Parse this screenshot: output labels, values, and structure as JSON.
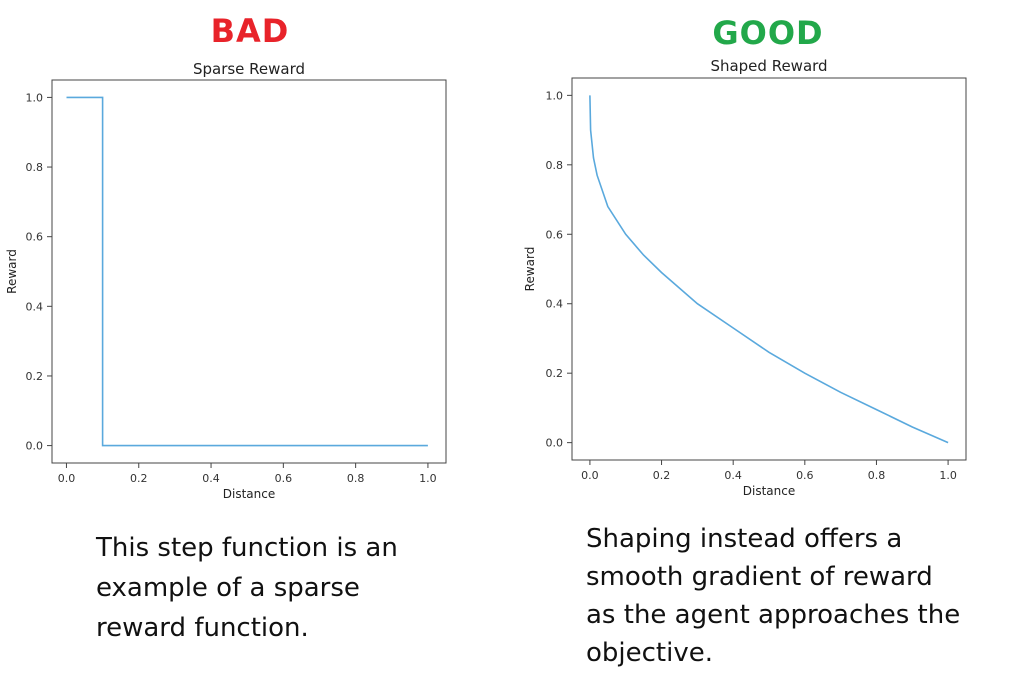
{
  "panels": [
    {
      "verdict": "BAD",
      "verdict_color": "#e8232a",
      "caption": "This step function is an\nexample of a sparse\nreward function."
    },
    {
      "verdict": "GOOD",
      "verdict_color": "#22a84a",
      "caption": "Shaping instead offers a\nsmooth gradient of reward\nas the agent approaches the\nobjective."
    }
  ],
  "chart_data": [
    {
      "type": "line",
      "title": "Sparse Reward",
      "xlabel": "Distance",
      "ylabel": "Reward",
      "xlim": [
        -0.04,
        1.05
      ],
      "ylim": [
        -0.05,
        1.05
      ],
      "xticks": [
        0.0,
        0.2,
        0.4,
        0.6,
        0.8,
        1.0
      ],
      "xtick_labels": [
        "0.0",
        "0.2",
        "0.4",
        "0.6",
        "0.8",
        "1.0"
      ],
      "yticks": [
        0.0,
        0.2,
        0.4,
        0.6,
        0.8,
        1.0
      ],
      "ytick_labels": [
        "0.0",
        "0.2",
        "0.4",
        "0.6",
        "0.8",
        "1.0"
      ],
      "line_color": "#5aa9dd",
      "series": [
        {
          "x": [
            0.0,
            0.1,
            0.1,
            1.0
          ],
          "y": [
            1.0,
            1.0,
            0.0,
            0.0
          ]
        }
      ]
    },
    {
      "type": "line",
      "title": "Shaped Reward",
      "xlabel": "Distance",
      "ylabel": "Reward",
      "xlim": [
        -0.05,
        1.05
      ],
      "ylim": [
        -0.05,
        1.05
      ],
      "xticks": [
        0.0,
        0.2,
        0.4,
        0.6,
        0.8,
        1.0
      ],
      "xtick_labels": [
        "0.0",
        "0.2",
        "0.4",
        "0.6",
        "0.8",
        "1.0"
      ],
      "yticks": [
        0.0,
        0.2,
        0.4,
        0.6,
        0.8,
        1.0
      ],
      "ytick_labels": [
        "0.0",
        "0.2",
        "0.4",
        "0.6",
        "0.8",
        "1.0"
      ],
      "line_color": "#5aa9dd",
      "series": [
        {
          "x": [
            0.0,
            0.002,
            0.01,
            0.02,
            0.05,
            0.1,
            0.15,
            0.2,
            0.3,
            0.4,
            0.5,
            0.6,
            0.7,
            0.8,
            0.9,
            1.0
          ],
          "y": [
            1.0,
            0.9,
            0.82,
            0.77,
            0.68,
            0.6,
            0.54,
            0.49,
            0.4,
            0.33,
            0.26,
            0.2,
            0.145,
            0.095,
            0.045,
            0.0
          ]
        }
      ]
    }
  ]
}
